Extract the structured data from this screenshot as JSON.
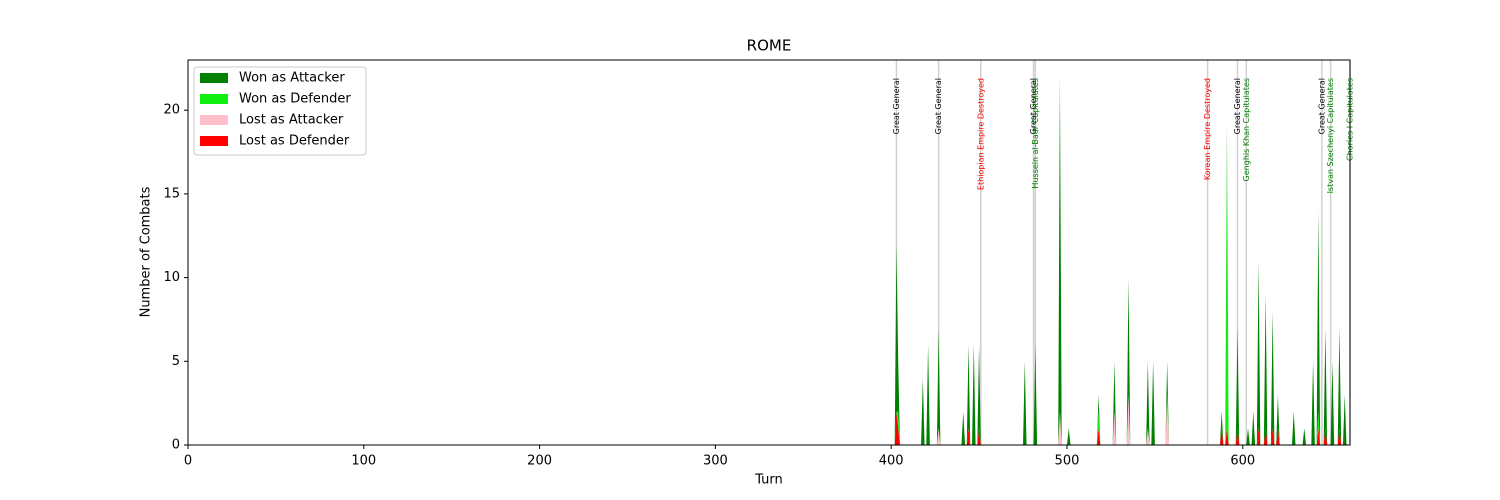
{
  "chart_data": {
    "type": "stacked_area",
    "title": "ROME",
    "x_label": "Turn",
    "y_label": "Number of Combats",
    "xlim": [
      0,
      661
    ],
    "ylim": [
      0,
      23
    ],
    "xticks": [
      0,
      100,
      200,
      300,
      400,
      500,
      600
    ],
    "yticks": [
      0,
      5,
      10,
      15,
      20
    ],
    "legend": "upper left",
    "x": [
      0,
      402,
      403,
      404,
      405,
      417,
      418,
      419,
      420,
      421,
      422,
      426,
      427,
      428,
      440,
      441,
      442,
      443,
      444,
      445,
      446,
      447,
      448,
      449,
      450,
      451,
      475,
      476,
      477,
      481,
      482,
      483,
      495,
      496,
      497,
      500,
      501,
      502,
      517,
      518,
      519,
      526,
      527,
      528,
      534,
      535,
      536,
      545,
      546,
      547,
      548,
      549,
      550,
      556,
      557,
      558,
      587,
      588,
      589,
      590,
      591,
      592,
      596,
      597,
      598,
      602,
      603,
      604,
      605,
      606,
      607,
      608,
      609,
      610,
      612,
      613,
      614,
      616,
      617,
      618,
      619,
      620,
      621,
      628,
      629,
      630,
      634,
      635,
      636,
      639,
      640,
      641,
      642,
      643,
      644,
      646,
      647,
      648,
      650,
      651,
      652,
      654,
      655,
      656,
      657,
      658,
      659,
      661
    ],
    "series": [
      {
        "name": "Won as Attacker",
        "color": "#008000",
        "values": [
          0,
          0,
          10,
          3,
          0,
          0,
          4,
          0,
          0,
          6,
          0,
          0,
          6,
          0,
          0,
          2,
          0,
          0,
          5,
          0,
          0,
          6,
          0,
          0,
          5,
          0,
          0,
          5,
          0,
          0,
          6,
          0,
          0,
          20,
          0,
          0,
          1,
          0,
          0,
          1,
          0,
          0,
          3,
          0,
          0,
          7,
          0,
          0,
          4,
          0,
          0,
          5,
          0,
          0,
          2,
          0,
          0,
          1,
          0,
          0,
          1,
          0,
          0,
          6,
          0,
          0,
          1,
          0,
          0,
          2,
          0,
          0,
          10,
          0,
          0,
          8,
          0,
          0,
          7,
          0,
          0,
          2,
          0,
          0,
          2,
          0,
          0,
          1,
          0,
          0,
          5,
          0,
          0,
          12,
          0,
          0,
          6,
          0,
          0,
          5,
          0,
          0,
          6,
          0,
          0,
          3,
          0,
          0
        ]
      },
      {
        "name": "Won as Defender",
        "color": "#11ee11",
        "values": [
          0,
          0,
          0,
          1,
          0,
          0,
          0,
          0,
          0,
          0,
          0,
          0,
          0,
          0,
          0,
          0,
          0,
          0,
          0,
          0,
          0,
          0,
          0,
          0,
          0,
          0,
          0,
          0,
          0,
          0,
          0,
          0,
          0,
          0,
          0,
          0,
          0,
          0,
          0,
          1,
          0,
          0,
          0,
          0,
          0,
          0,
          0,
          0,
          0,
          0,
          0,
          0,
          0,
          0,
          0,
          0,
          0,
          0,
          0,
          0,
          17,
          0,
          0,
          0,
          0,
          0,
          0,
          0,
          0,
          0,
          0,
          0,
          0,
          0,
          0,
          0,
          0,
          0,
          0,
          0,
          0,
          0,
          0,
          0,
          0,
          0,
          0,
          0,
          0,
          0,
          0,
          0,
          0,
          1,
          0,
          0,
          0,
          0,
          0,
          0,
          0,
          0,
          0,
          0,
          0,
          0,
          0,
          0
        ]
      },
      {
        "name": "Lost as Attacker",
        "color": "#ffc0cb",
        "values": [
          0,
          0,
          0,
          0,
          0,
          0,
          0,
          0,
          0,
          0,
          0,
          0,
          1,
          0,
          0,
          0,
          0,
          0,
          0,
          0,
          0,
          0,
          0,
          0,
          0,
          0,
          0,
          0,
          0,
          0,
          0,
          0,
          0,
          2,
          0,
          0,
          0,
          0,
          0,
          0,
          0,
          0,
          2,
          0,
          0,
          3,
          0,
          0,
          1,
          0,
          0,
          0,
          0,
          0,
          3,
          0,
          0,
          0,
          0,
          0,
          0,
          0,
          0,
          0,
          0,
          0,
          0,
          0,
          0,
          0,
          0,
          0,
          0,
          0,
          0,
          0,
          0,
          0,
          0,
          0,
          0,
          0,
          0,
          0,
          0,
          0,
          0,
          0,
          0,
          0,
          0,
          0,
          0,
          0,
          0,
          0,
          0,
          0,
          0,
          0,
          0,
          0,
          0,
          0,
          0,
          0,
          0,
          0
        ]
      },
      {
        "name": "Lost as Defender",
        "color": "#ff0000",
        "values": [
          0,
          0,
          2,
          1,
          0,
          0,
          0,
          0,
          0,
          0,
          0,
          0,
          0,
          0,
          0,
          0,
          0,
          0,
          1,
          0,
          0,
          0,
          0,
          0,
          1,
          0,
          0,
          0,
          0,
          0,
          0,
          0,
          0,
          0,
          0,
          0,
          0,
          0,
          0,
          1,
          0,
          0,
          0,
          0,
          0,
          0,
          0,
          0,
          0,
          0,
          0,
          0,
          0,
          0,
          0,
          0,
          0,
          1,
          0,
          0,
          1,
          0,
          0,
          1,
          0,
          0,
          0,
          0,
          0,
          0,
          0,
          0,
          1,
          0,
          0,
          1,
          0,
          0,
          1,
          0,
          0,
          1,
          0,
          0,
          0,
          0,
          0,
          0,
          0,
          0,
          0,
          0,
          0,
          1,
          0,
          0,
          1,
          0,
          0,
          0,
          0,
          0,
          1,
          0,
          0,
          0,
          0,
          0
        ]
      }
    ],
    "annotations": [
      {
        "x": 403,
        "text": "Great General",
        "color": "#000000"
      },
      {
        "x": 427,
        "text": "Great General",
        "color": "#000000"
      },
      {
        "x": 451,
        "text": "Ethiopian Empire Destroyed",
        "color": "#ff0000"
      },
      {
        "x": 481,
        "text": "Great General",
        "color": "#000000"
      },
      {
        "x": 482,
        "text": "Hussein al-Badr Capitulates",
        "color": "#008000"
      },
      {
        "x": 580,
        "text": "Korean Empire Destroyed",
        "color": "#ff0000"
      },
      {
        "x": 597,
        "text": "Great General",
        "color": "#000000"
      },
      {
        "x": 602,
        "text": "Genghis Khan Capitulates",
        "color": "#008000"
      },
      {
        "x": 645,
        "text": "Great General",
        "color": "#000000"
      },
      {
        "x": 650,
        "text": "Istvan Szechenyi Capitulates",
        "color": "#008000"
      },
      {
        "x": 661,
        "text": "Charles I Capitulates",
        "color": "#008000"
      }
    ]
  }
}
